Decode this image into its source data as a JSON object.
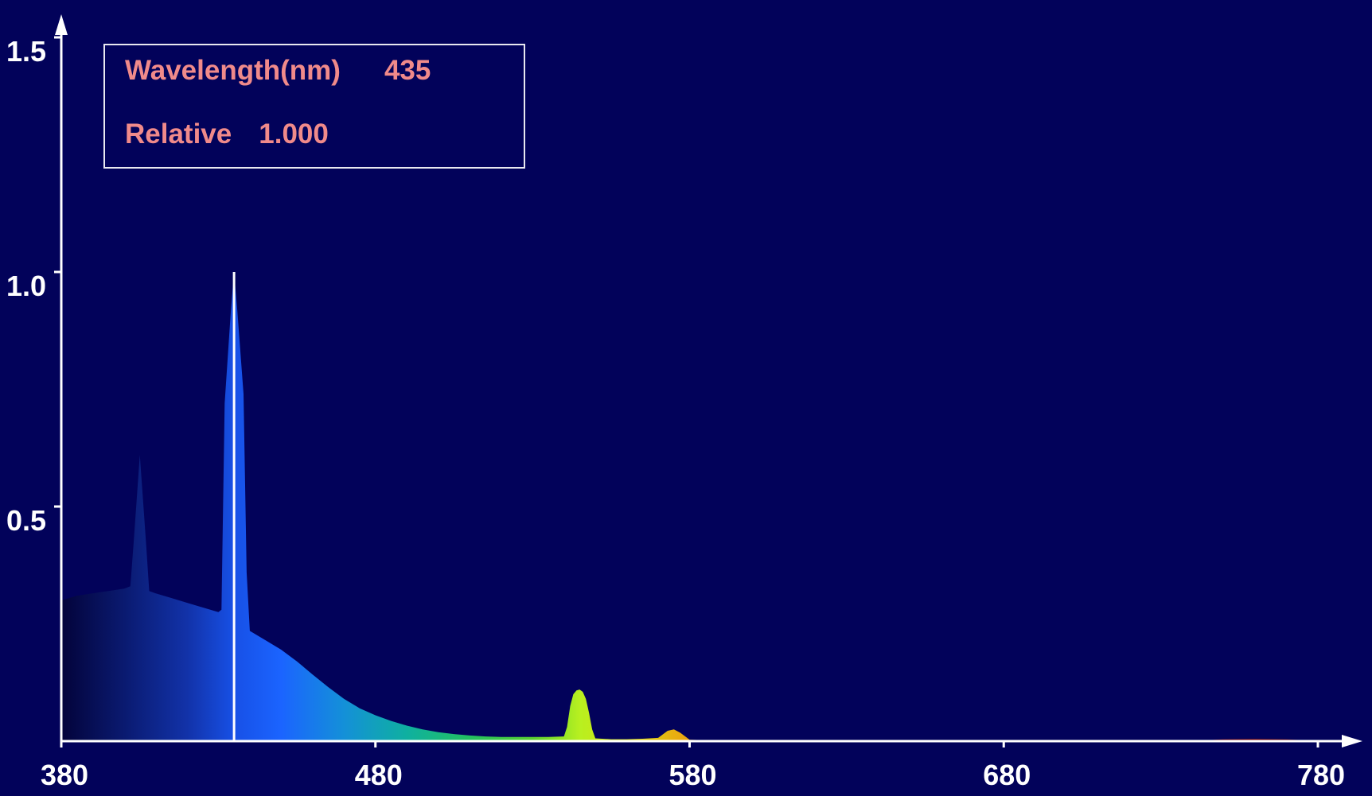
{
  "readout": {
    "wavelength_label": "Wavelength(nm)",
    "wavelength_value": "435",
    "relative_label": "Relative",
    "relative_value": "1.000"
  },
  "colors": {
    "background": "#02025a",
    "axis": "#ffffff",
    "readout_text": "#f08a8a",
    "cursor_line": "#ffffff"
  },
  "chart_data": {
    "type": "area",
    "title": "",
    "xlabel": "",
    "ylabel": "",
    "xlim": [
      380,
      780
    ],
    "ylim": [
      0,
      1.5
    ],
    "grid": false,
    "x_ticks": [
      380,
      480,
      580,
      680,
      780
    ],
    "x_tick_labels": [
      "380",
      "480",
      "580",
      "680",
      "780"
    ],
    "y_ticks": [
      0.5,
      1.0,
      1.5
    ],
    "y_tick_labels": [
      "0.5",
      "1.0",
      "1.5"
    ],
    "fill": "visible-spectrum gradient by wavelength",
    "cursor_wavelength": 435,
    "cursor_relative": 1.0,
    "series": [
      {
        "x": [
          380,
          385,
          390,
          395,
          400,
          402,
          403,
          405,
          407,
          408,
          410,
          415,
          420,
          425,
          430,
          431,
          432,
          434,
          435,
          436,
          438,
          439,
          440,
          445,
          450,
          455,
          460,
          465,
          470,
          475,
          480,
          485,
          490,
          495,
          500,
          505,
          510,
          515,
          520,
          525,
          530,
          535,
          540,
          541,
          542,
          543,
          544,
          545,
          546,
          547,
          548,
          549,
          550,
          555,
          560,
          565,
          570,
          573,
          575,
          577,
          579,
          580,
          590,
          600,
          650,
          700,
          740,
          750,
          760,
          770,
          780
        ],
        "values": [
          0.3,
          0.31,
          0.315,
          0.32,
          0.325,
          0.33,
          0.42,
          0.61,
          0.42,
          0.32,
          0.315,
          0.305,
          0.295,
          0.285,
          0.275,
          0.28,
          0.72,
          0.92,
          1.0,
          0.92,
          0.74,
          0.36,
          0.235,
          0.215,
          0.195,
          0.17,
          0.142,
          0.115,
          0.09,
          0.07,
          0.055,
          0.043,
          0.033,
          0.025,
          0.019,
          0.015,
          0.012,
          0.01,
          0.009,
          0.009,
          0.009,
          0.009,
          0.01,
          0.03,
          0.075,
          0.1,
          0.108,
          0.11,
          0.105,
          0.09,
          0.06,
          0.025,
          0.006,
          0.004,
          0.004,
          0.005,
          0.007,
          0.022,
          0.025,
          0.018,
          0.008,
          0.003,
          0.001,
          0.0,
          0.0,
          0.0,
          0.0,
          0.004,
          0.005,
          0.004,
          0.0
        ]
      }
    ]
  }
}
